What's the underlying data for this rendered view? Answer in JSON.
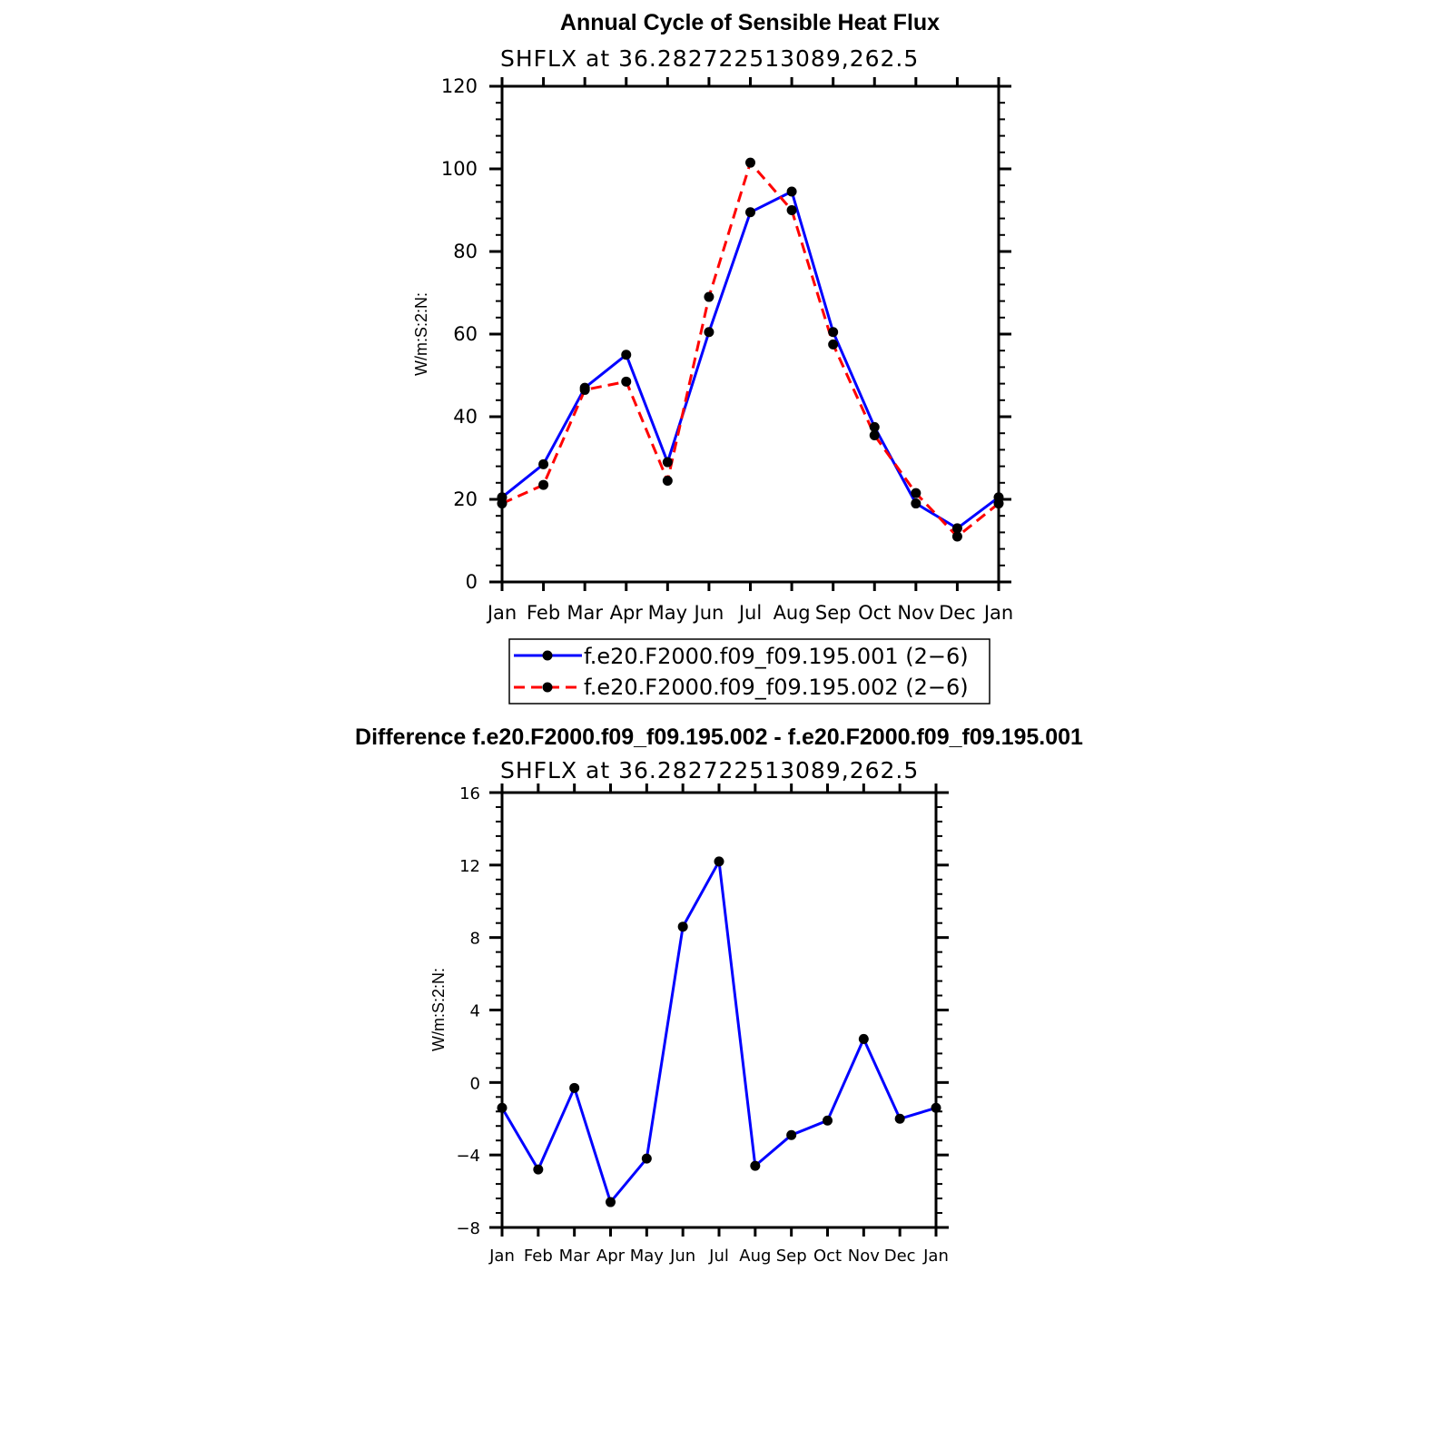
{
  "colors": {
    "series1": "#0000ff",
    "series2": "#ff0000",
    "marker": "#000000"
  },
  "chart_data": [
    {
      "type": "line",
      "title": "Annual Cycle of Sensible Heat Flux",
      "subtitle": "SHFLX  at  36.282722513089,262.5",
      "xlabel": "",
      "ylabel": "W/m:S:2:N:",
      "categories": [
        "Jan",
        "Feb",
        "Mar",
        "Apr",
        "May",
        "Jun",
        "Jul",
        "Aug",
        "Sep",
        "Oct",
        "Nov",
        "Dec",
        "Jan"
      ],
      "ylim": [
        0,
        120
      ],
      "yticks": [
        0,
        20,
        40,
        60,
        80,
        100,
        120
      ],
      "ytick_labels": [
        "0",
        "20",
        "40",
        "60",
        "80",
        "100",
        "120"
      ],
      "legend_position": "bottom",
      "series": [
        {
          "name": "f.e20.F2000.f09_f09.195.001  (2−6)",
          "style": "solid",
          "color": "#0000ff",
          "values": [
            20.5,
            28.5,
            47.0,
            55.0,
            29.0,
            60.5,
            89.5,
            94.5,
            60.5,
            37.5,
            19.0,
            13.0,
            20.5
          ]
        },
        {
          "name": "f.e20.F2000.f09_f09.195.002  (2−6)",
          "style": "dashed",
          "color": "#ff0000",
          "values": [
            19.0,
            23.5,
            46.5,
            48.5,
            24.5,
            69.0,
            101.5,
            90.0,
            57.5,
            35.5,
            21.5,
            11.0,
            19.0
          ]
        }
      ]
    },
    {
      "type": "line",
      "title": "Difference f.e20.F2000.f09_f09.195.002 - f.e20.F2000.f09_f09.195.001",
      "subtitle": "SHFLX  at  36.282722513089,262.5",
      "xlabel": "",
      "ylabel": "W/m:S:2:N:",
      "categories": [
        "Jan",
        "Feb",
        "Mar",
        "Apr",
        "May",
        "Jun",
        "Jul",
        "Aug",
        "Sep",
        "Oct",
        "Nov",
        "Dec",
        "Jan"
      ],
      "ylim": [
        -8,
        16
      ],
      "yticks": [
        -8,
        -4,
        0,
        4,
        8,
        12,
        16
      ],
      "ytick_labels": [
        "−8",
        "−4",
        "0",
        "4",
        "8",
        "12",
        "16"
      ],
      "series": [
        {
          "name": "Difference",
          "style": "solid",
          "color": "#0000ff",
          "values": [
            -1.4,
            -4.8,
            -0.3,
            -6.6,
            -4.2,
            8.6,
            12.2,
            -4.6,
            -2.9,
            -2.1,
            2.4,
            -2.0,
            -1.4
          ]
        }
      ]
    }
  ]
}
